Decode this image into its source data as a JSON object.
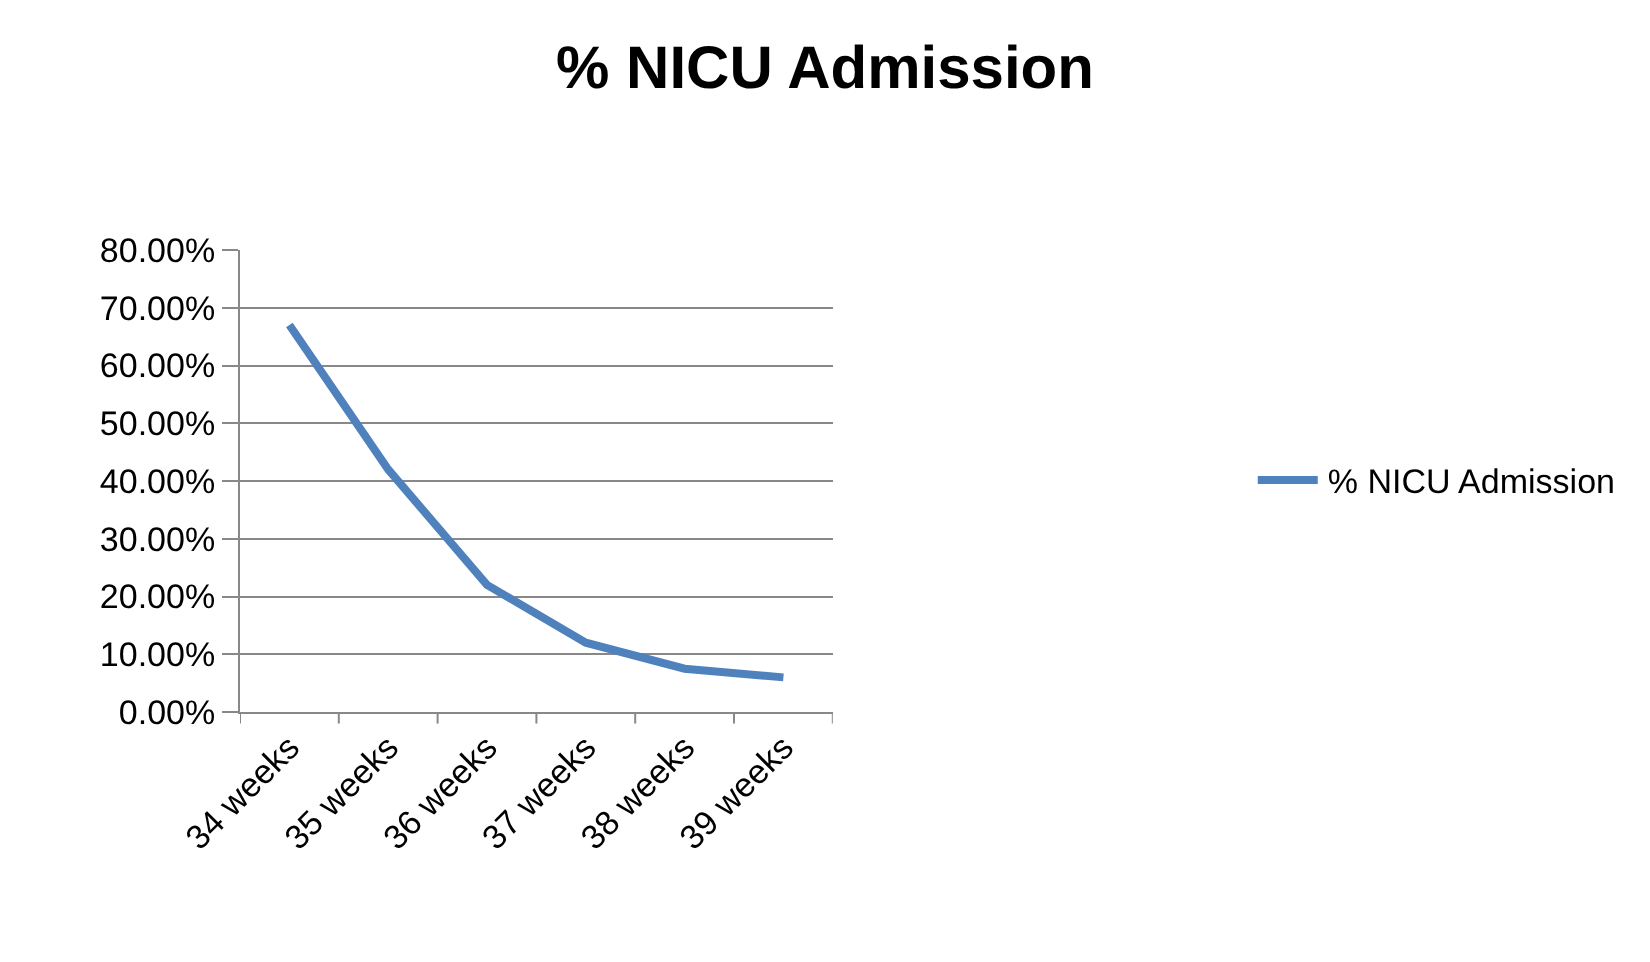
{
  "chart_data": {
    "type": "line",
    "title": "% NICU Admission",
    "categories": [
      "34 weeks",
      "35 weeks",
      "36 weeks",
      "37 weeks",
      "38 weeks",
      "39 weeks"
    ],
    "series": [
      {
        "name": "% NICU Admission",
        "color": "#4f81bd",
        "values": [
          67,
          42,
          22,
          12,
          7.5,
          6
        ]
      }
    ],
    "ylim": [
      0,
      80
    ],
    "yticks": [
      {
        "value": 0,
        "label": "0.00%"
      },
      {
        "value": 10,
        "label": "10.00%"
      },
      {
        "value": 20,
        "label": "20.00%"
      },
      {
        "value": 30,
        "label": "30.00%"
      },
      {
        "value": 40,
        "label": "40.00%"
      },
      {
        "value": 50,
        "label": "50.00%"
      },
      {
        "value": 60,
        "label": "60.00%"
      },
      {
        "value": 70,
        "label": "70.00%"
      },
      {
        "value": 80,
        "label": "80.00%"
      }
    ],
    "grid": "y",
    "legend": "right",
    "marker": "none",
    "line_style": "solid"
  }
}
